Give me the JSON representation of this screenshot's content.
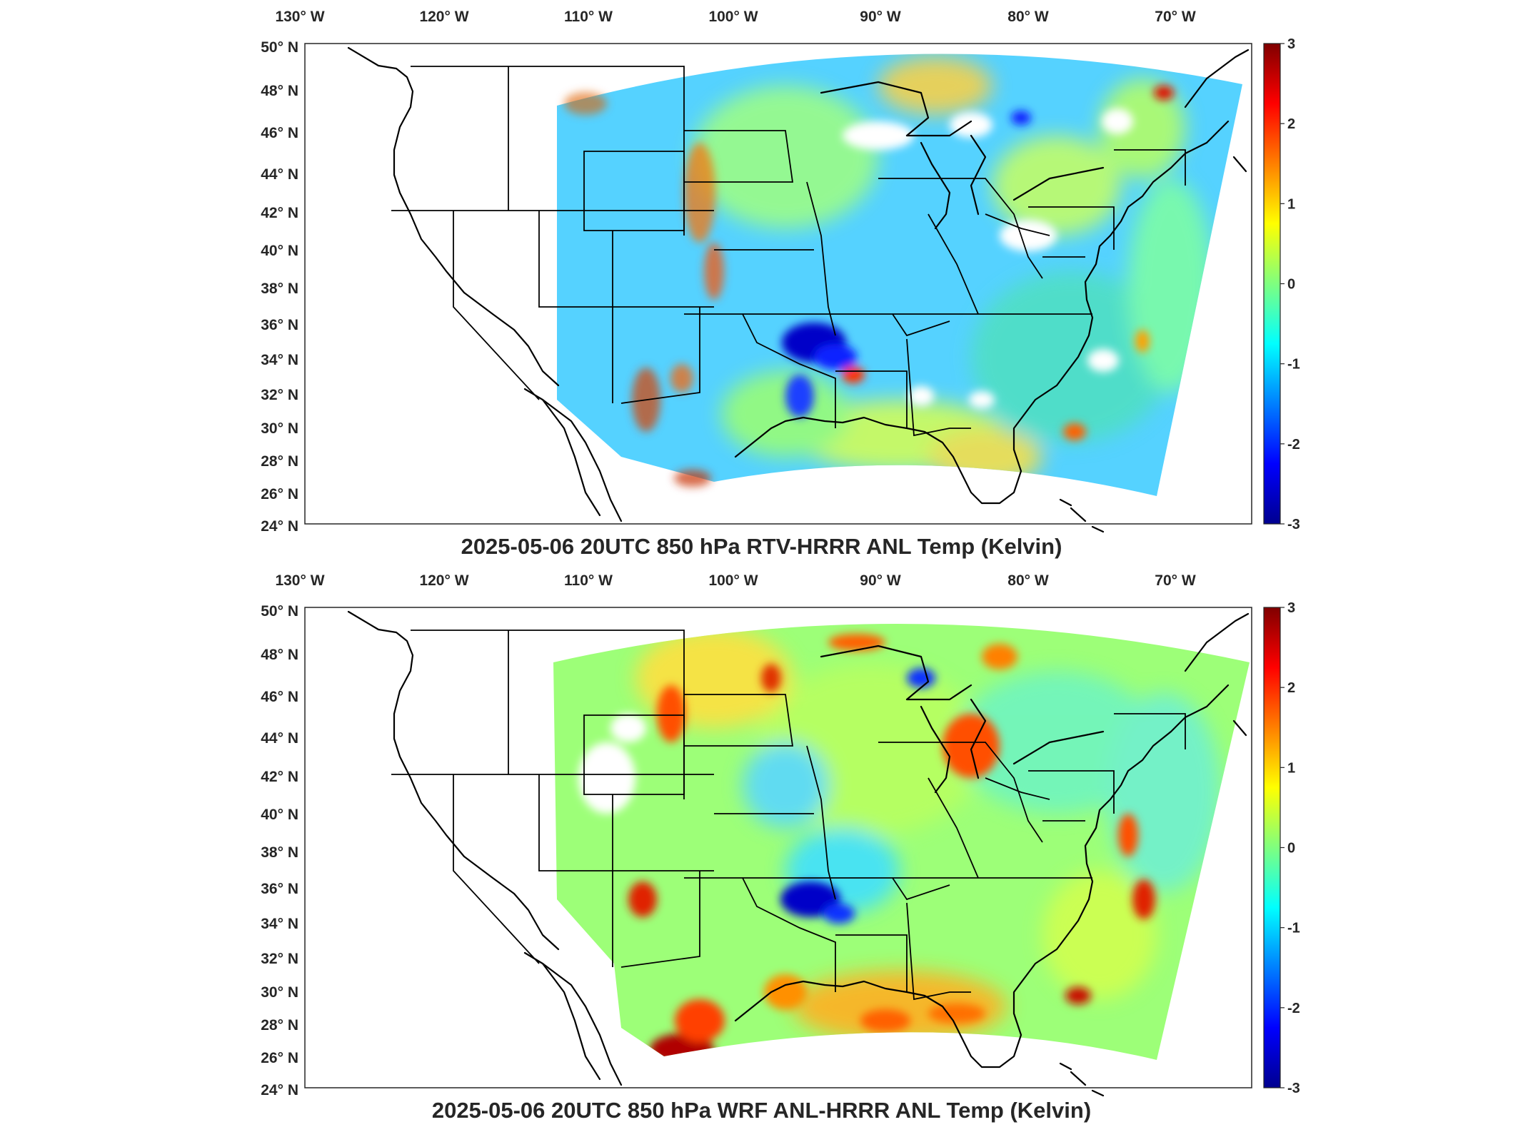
{
  "colorbar": {
    "min": -3,
    "max": 3,
    "ticks": [
      "3",
      "2",
      "1",
      "0",
      "-1",
      "-2",
      "-3"
    ],
    "colormap": "jet",
    "stops": [
      "#00008f",
      "#0000ff",
      "#00ffff",
      "#7fff7f",
      "#ffff00",
      "#ff0000",
      "#800000"
    ]
  },
  "lon_labels": [
    "130",
    "120",
    "110",
    "100",
    "90",
    "80",
    "70"
  ],
  "lon_suffix": "W",
  "lat_labels": [
    "50",
    "48",
    "46",
    "44",
    "42",
    "40",
    "38",
    "36",
    "34",
    "32",
    "30",
    "28",
    "26",
    "24"
  ],
  "lat_suffix": "N",
  "degree_symbol": "°",
  "panels": [
    {
      "title": "2025-05-06 20UTC 850 hPa RTV-HRRR ANL Temp (Kelvin)",
      "field": "RTV-HRRR ANL minus HRRR ANL",
      "features": [
        {
          "region": "Oklahoma / N Texas",
          "anomaly": -2.7
        },
        {
          "region": "Gulf Coast Louisiana",
          "anomaly": 2.0
        },
        {
          "region": "Plains dryline (scattered)",
          "anomaly": 2.5
        },
        {
          "region": "Atlantic offshore",
          "anomaly": -0.7
        },
        {
          "region": "Upper Midwest",
          "anomaly": -0.8
        }
      ]
    },
    {
      "title": "2025-05-06 20UTC 850 hPa WRF ANL-HRRR ANL Temp (Kelvin)",
      "field": "WRF ANL minus HRRR ANL",
      "features": [
        {
          "region": "Oklahoma / N Texas",
          "anomaly": -2.8
        },
        {
          "region": "South Texas",
          "anomaly": 2.8
        },
        {
          "region": "Michigan Lower Peninsula",
          "anomaly": 1.8
        },
        {
          "region": "Atlantic offshore",
          "anomaly": 2.0
        },
        {
          "region": "Gulf of Mexico",
          "anomaly": 1.5
        }
      ]
    }
  ]
}
